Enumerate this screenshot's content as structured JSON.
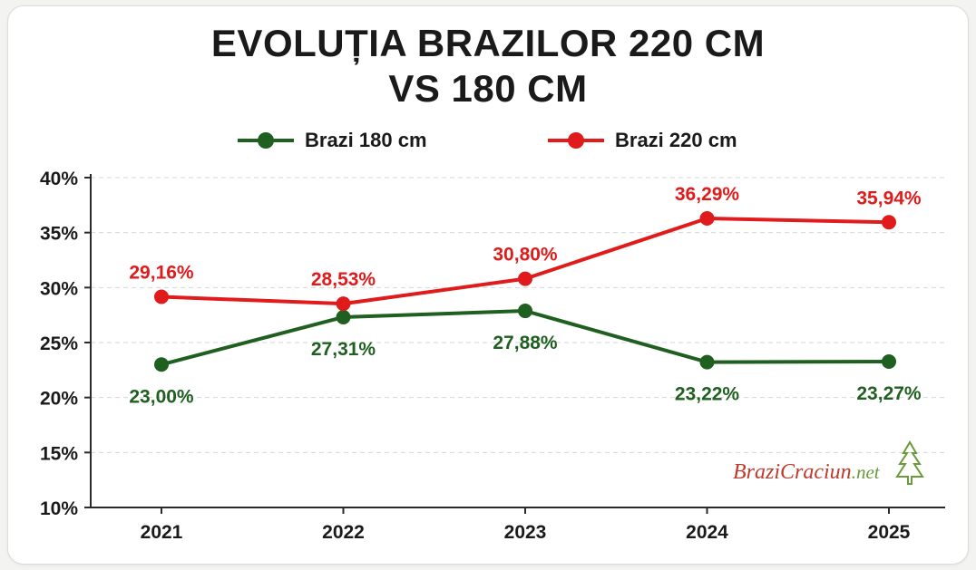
{
  "title_line1": "EVOLUȚIA BRAZILOR 220 CM",
  "title_line2": "VS 180 CM",
  "watermark": {
    "part1": "Brazi",
    "part2": "Craciun",
    "part3": ".net",
    "icon": "tree-icon"
  },
  "colors": {
    "green": "#1f5f1f",
    "red": "#e01b1b",
    "grid": "#d6d6d6",
    "axis": "#2a2a2a"
  },
  "chart_data": {
    "type": "line",
    "categories": [
      "2021",
      "2022",
      "2023",
      "2024",
      "2025"
    ],
    "y_ticks": [
      "10%",
      "15%",
      "20%",
      "25%",
      "30%",
      "35%",
      "40%"
    ],
    "ylim": [
      10,
      40
    ],
    "grid": true,
    "legend_position": "top",
    "series": [
      {
        "name": "Brazi 180 cm",
        "color": "#1f5f1f",
        "values": [
          23.0,
          27.31,
          27.88,
          23.22,
          23.27
        ],
        "labels": [
          "23,00%",
          "27,31%",
          "27,88%",
          "23,22%",
          "23,27%"
        ],
        "label_position": "below"
      },
      {
        "name": "Brazi 220 cm",
        "color": "#e01b1b",
        "values": [
          29.16,
          28.53,
          30.8,
          36.29,
          35.94
        ],
        "labels": [
          "29,16%",
          "28,53%",
          "30,80%",
          "36,29%",
          "35,94%"
        ],
        "label_position": "above"
      }
    ]
  }
}
